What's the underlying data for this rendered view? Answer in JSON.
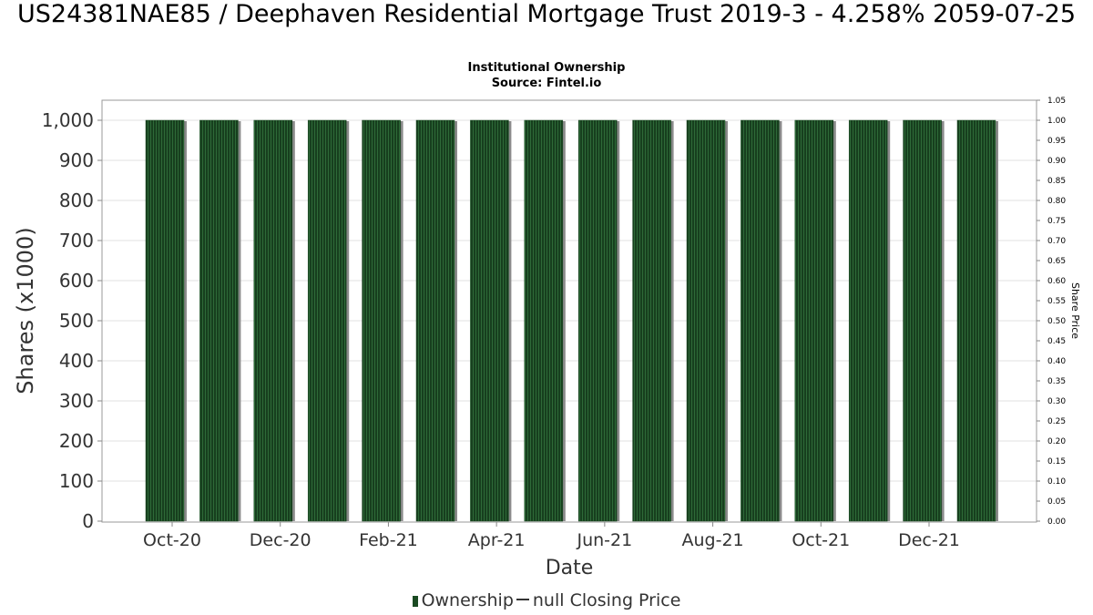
{
  "title": "US24381NAE85 / Deephaven Residential Mortgage Trust 2019-3 - 4.258% 2059-07-25",
  "subtitle": "Institutional Ownership",
  "source": "Source: Fintel.io",
  "colors": {
    "bar_fill": "#1a4a22",
    "bar_stripe": "#2f6b3a",
    "bar_shadow": "#8a8a8a",
    "grid": "#e0e0e0",
    "axis_text": "#333333"
  },
  "legend": {
    "ownership_label": "Ownership",
    "price_label": "null Closing Price"
  },
  "chart_data": {
    "type": "bar",
    "title": "US24381NAE85 / Deephaven Residential Mortgage Trust 2019-3 - 4.258% 2059-07-25",
    "xlabel": "Date",
    "ylabel": "Shares (x1000)",
    "y2label": "Share Price",
    "ylim": [
      0,
      1050
    ],
    "y2lim": [
      0,
      1.05
    ],
    "grid": true,
    "legend_position": "bottom",
    "x_tick_labels": [
      "Oct-20",
      "Dec-20",
      "Feb-21",
      "Apr-21",
      "Jun-21",
      "Aug-21",
      "Oct-21",
      "Dec-21"
    ],
    "y_tick_labels": [
      "0",
      "100",
      "200",
      "300",
      "400",
      "500",
      "600",
      "700",
      "800",
      "900",
      "1,000"
    ],
    "y2_tick_labels": [
      "0.00",
      "0.05",
      "0.10",
      "0.15",
      "0.20",
      "0.25",
      "0.30",
      "0.35",
      "0.40",
      "0.45",
      "0.50",
      "0.55",
      "0.60",
      "0.65",
      "0.70",
      "0.75",
      "0.80",
      "0.85",
      "0.90",
      "0.95",
      "1.00",
      "1.05"
    ],
    "series": [
      {
        "name": "Ownership",
        "values": [
          1000,
          1000,
          1000,
          1000,
          1000,
          1000,
          1000,
          1000,
          1000,
          1000,
          1000,
          1000,
          1000,
          1000,
          1000,
          1000
        ]
      }
    ]
  }
}
